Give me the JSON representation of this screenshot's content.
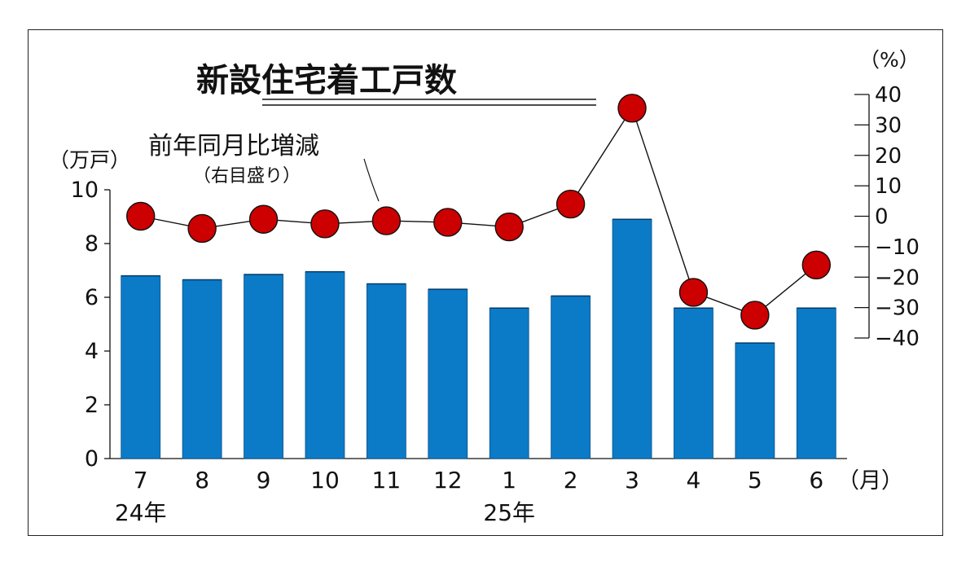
{
  "chart_data": {
    "type": "bar",
    "title": "新設住宅着工戸数",
    "categories": [
      "7",
      "8",
      "9",
      "10",
      "11",
      "12",
      "1",
      "2",
      "3",
      "4",
      "5",
      "6"
    ],
    "year_labels": [
      {
        "at_category": "7",
        "label": "24年"
      },
      {
        "at_category": "1",
        "label": "25年"
      }
    ],
    "x_unit": "（月）",
    "left_axis": {
      "unit": "（万戸）",
      "ylim": [
        0,
        10
      ],
      "ticks": [
        0,
        2,
        4,
        6,
        8,
        10
      ]
    },
    "right_axis": {
      "unit": "（%）",
      "ylim": [
        -40,
        40
      ],
      "ticks": [
        40,
        30,
        20,
        10,
        0,
        -10,
        -20,
        -30,
        -40
      ],
      "tick_labels": [
        "40",
        "30",
        "20",
        "10",
        "0",
        "−10",
        "−20",
        "−30",
        "−40"
      ]
    },
    "series": [
      {
        "type": "bar",
        "axis": "left",
        "color": "#0b7bc8",
        "values": [
          6.8,
          6.65,
          6.85,
          6.95,
          6.5,
          6.3,
          5.6,
          6.05,
          8.9,
          5.6,
          4.3,
          5.6
        ]
      },
      {
        "type": "line",
        "axis": "right",
        "name": "前年同月比増減",
        "name_note": "（右目盛り）",
        "color": "#cc0000",
        "values": [
          0,
          -4,
          -1,
          -2.5,
          -1.5,
          -2,
          -3.5,
          4,
          35.5,
          -25,
          -32.5,
          -16
        ]
      }
    ],
    "grid": false
  }
}
